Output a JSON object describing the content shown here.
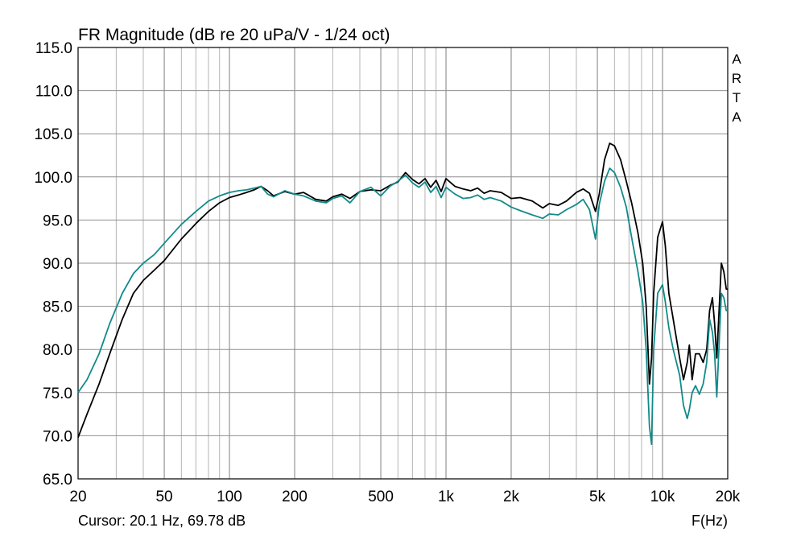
{
  "chart_data": {
    "type": "line",
    "title": "FR Magnitude (dB re 20 uPa/V - 1/24 oct)",
    "xlabel": "F(Hz)",
    "xscale": "log",
    "xlim": [
      20,
      20000
    ],
    "ylim": [
      65.0,
      115.0
    ],
    "grid": true,
    "y_ticks": [
      "115.0",
      "110.0",
      "105.0",
      "100.0",
      "95.0",
      "90.0",
      "85.0",
      "80.0",
      "75.0",
      "70.0",
      "65.0"
    ],
    "x_ticks": [
      {
        "value": 20,
        "label": "20"
      },
      {
        "value": 50,
        "label": "50"
      },
      {
        "value": 100,
        "label": "100"
      },
      {
        "value": 200,
        "label": "200"
      },
      {
        "value": 500,
        "label": "500"
      },
      {
        "value": 1000,
        "label": "1k"
      },
      {
        "value": 2000,
        "label": "2k"
      },
      {
        "value": 5000,
        "label": "5k"
      },
      {
        "value": 10000,
        "label": "10k"
      },
      {
        "value": 20000,
        "label": "20k"
      }
    ],
    "watermark": [
      "A",
      "R",
      "T",
      "A"
    ],
    "cursor_text": "Cursor: 20.1 Hz, 69.78 dB",
    "series": [
      {
        "color": "#000000",
        "x": [
          20,
          22,
          25,
          28,
          32,
          36,
          40,
          45,
          50,
          60,
          70,
          80,
          90,
          100,
          110,
          120,
          130,
          140,
          150,
          160,
          180,
          200,
          220,
          250,
          280,
          300,
          330,
          360,
          400,
          450,
          500,
          550,
          600,
          650,
          700,
          750,
          800,
          850,
          900,
          950,
          1000,
          1100,
          1200,
          1300,
          1400,
          1500,
          1600,
          1800,
          2000,
          2200,
          2500,
          2800,
          3000,
          3300,
          3600,
          4000,
          4300,
          4600,
          4900,
          5100,
          5400,
          5700,
          6000,
          6400,
          6800,
          7200,
          7700,
          8100,
          8400,
          8700,
          8900,
          9100,
          9500,
          10000,
          10300,
          10700,
          11200,
          12000,
          12500,
          13000,
          13300,
          13700,
          14200,
          14800,
          15400,
          16000,
          16500,
          17000,
          17400,
          17800,
          18200,
          18700,
          19200,
          19700,
          20000
        ],
        "y": [
          69.8,
          72.5,
          76.0,
          79.5,
          83.5,
          86.5,
          88.0,
          89.2,
          90.3,
          92.8,
          94.6,
          96.0,
          97.0,
          97.6,
          97.9,
          98.2,
          98.5,
          98.9,
          98.4,
          97.8,
          98.3,
          98.0,
          98.2,
          97.4,
          97.2,
          97.7,
          98.0,
          97.5,
          98.3,
          98.5,
          98.4,
          99.0,
          99.4,
          100.5,
          99.7,
          99.2,
          99.8,
          98.8,
          99.6,
          98.3,
          99.8,
          98.9,
          98.6,
          98.4,
          98.7,
          98.1,
          98.4,
          98.2,
          97.5,
          97.6,
          97.2,
          96.4,
          96.9,
          96.7,
          97.2,
          98.2,
          98.6,
          98.1,
          96.0,
          98.0,
          102.0,
          103.9,
          103.6,
          102.0,
          99.5,
          97.0,
          93.5,
          90.0,
          85.0,
          76.0,
          79.0,
          86.5,
          93.0,
          94.8,
          92.0,
          86.5,
          83.5,
          79.0,
          76.5,
          78.5,
          80.5,
          76.5,
          79.5,
          79.5,
          78.5,
          80.0,
          84.5,
          86.0,
          83.0,
          79.0,
          84.0,
          90.0,
          89.0,
          87.0,
          87.0
        ]
      },
      {
        "color": "#138a8a",
        "x": [
          20,
          22,
          25,
          28,
          32,
          36,
          40,
          45,
          50,
          60,
          70,
          80,
          90,
          100,
          110,
          120,
          130,
          140,
          150,
          160,
          180,
          200,
          220,
          250,
          280,
          300,
          330,
          360,
          400,
          450,
          500,
          550,
          600,
          650,
          700,
          750,
          800,
          850,
          900,
          950,
          1000,
          1100,
          1200,
          1300,
          1400,
          1500,
          1600,
          1800,
          2000,
          2200,
          2500,
          2800,
          3000,
          3300,
          3600,
          4000,
          4300,
          4600,
          4900,
          5100,
          5400,
          5700,
          6000,
          6400,
          6800,
          7200,
          7700,
          8100,
          8400,
          8700,
          8900,
          9100,
          9500,
          10000,
          10300,
          10700,
          11200,
          12000,
          12500,
          13000,
          13300,
          13700,
          14200,
          14800,
          15400,
          16000,
          16500,
          17000,
          17400,
          17800,
          18200,
          18700,
          19200,
          19700,
          20000
        ],
        "y": [
          75.0,
          76.5,
          79.5,
          83.0,
          86.5,
          88.8,
          90.0,
          91.0,
          92.3,
          94.5,
          96.0,
          97.2,
          97.8,
          98.2,
          98.4,
          98.5,
          98.7,
          98.9,
          98.0,
          97.7,
          98.4,
          98.0,
          97.8,
          97.2,
          97.0,
          97.5,
          97.8,
          97.0,
          98.3,
          98.8,
          97.8,
          98.9,
          99.5,
          100.2,
          99.3,
          98.8,
          99.4,
          98.2,
          98.9,
          97.6,
          98.8,
          98.0,
          97.5,
          97.6,
          97.9,
          97.4,
          97.6,
          97.2,
          96.5,
          96.1,
          95.6,
          95.2,
          95.7,
          95.6,
          96.2,
          96.8,
          97.4,
          96.2,
          92.8,
          96.8,
          99.5,
          101.0,
          100.5,
          98.8,
          96.5,
          93.0,
          89.0,
          85.5,
          80.0,
          71.0,
          69.0,
          80.0,
          86.5,
          87.5,
          85.5,
          82.5,
          80.0,
          77.0,
          73.5,
          72.0,
          73.0,
          75.0,
          75.8,
          74.8,
          76.0,
          78.5,
          83.5,
          82.0,
          79.5,
          74.5,
          80.0,
          86.5,
          86.0,
          84.5,
          84.5
        ]
      }
    ]
  }
}
